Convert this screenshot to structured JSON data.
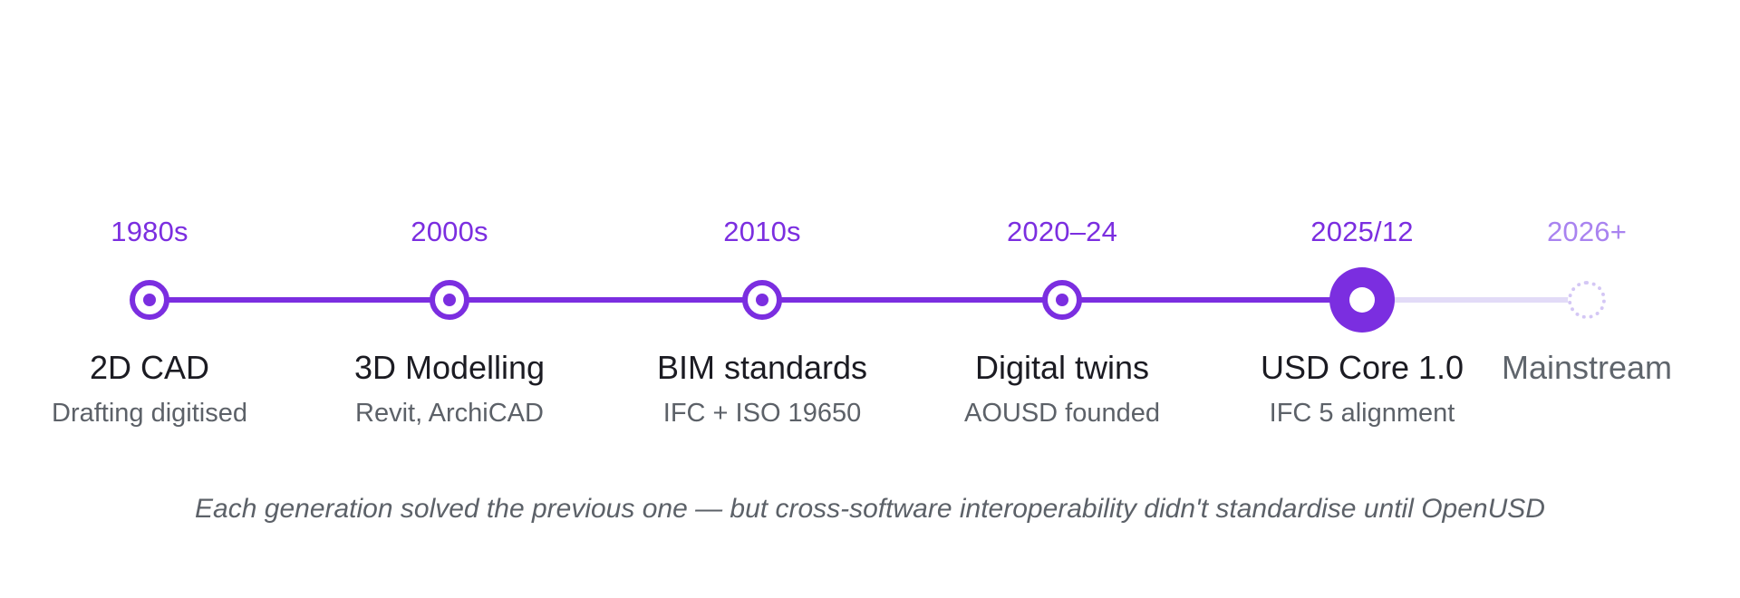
{
  "milestones": [
    {
      "year": "1980s",
      "title": "2D CAD",
      "subtitle": "Drafting digitised",
      "state": "done"
    },
    {
      "year": "2000s",
      "title": "3D Modelling",
      "subtitle": "Revit, ArchiCAD",
      "state": "done"
    },
    {
      "year": "2010s",
      "title": "BIM standards",
      "subtitle": "IFC + ISO 19650",
      "state": "done"
    },
    {
      "year": "2020–24",
      "title": "Digital twins",
      "subtitle": "AOUSD founded",
      "state": "done"
    },
    {
      "year": "2025/12",
      "title": "USD Core 1.0",
      "subtitle": "IFC 5 alignment",
      "state": "current"
    },
    {
      "year": "2026+",
      "title": "Mainstream",
      "subtitle": "",
      "state": "future"
    }
  ],
  "caption": "Each generation solved the previous one — but cross-software interoperability didn't standardise until OpenUSD",
  "colors": {
    "accent": "#7b2ee0",
    "future_accent": "#a983f0",
    "future_track": "#e2dbf7",
    "text_dark": "#1b1b22",
    "text_muted": "#5c6168"
  }
}
